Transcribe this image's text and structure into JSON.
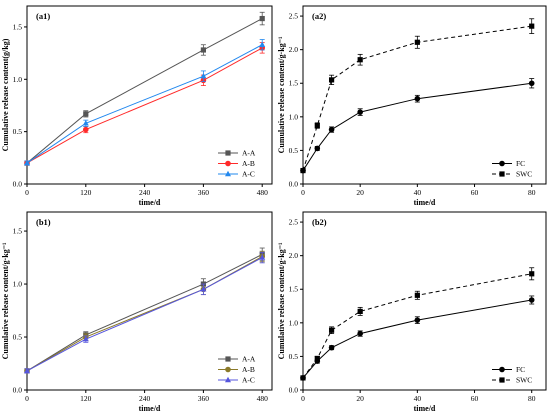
{
  "chart_data": [
    {
      "panel": "(a1)",
      "type": "line",
      "xlabel": "time/d",
      "ylabel": "Cumulative release content(g/kg)",
      "x": [
        0,
        120,
        360,
        480
      ],
      "xlim": [
        0,
        500
      ],
      "ylim": [
        0,
        1.7
      ],
      "xticks": [
        0,
        120,
        240,
        360,
        480
      ],
      "yticks": [
        0.0,
        0.5,
        1.0,
        1.5
      ],
      "legend_position": "bottom-right",
      "series": [
        {
          "name": "A-A",
          "values": [
            0.2,
            0.67,
            1.28,
            1.58
          ],
          "errors": [
            0.02,
            0.03,
            0.05,
            0.06
          ],
          "color": "#555555",
          "marker": "square"
        },
        {
          "name": "A-B",
          "values": [
            0.2,
            0.52,
            0.99,
            1.3
          ],
          "errors": [
            0.02,
            0.03,
            0.05,
            0.05
          ],
          "color": "#ff2a2a",
          "marker": "circle"
        },
        {
          "name": "A-C",
          "values": [
            0.2,
            0.58,
            1.03,
            1.33
          ],
          "errors": [
            0.02,
            0.03,
            0.05,
            0.05
          ],
          "color": "#2288ee",
          "marker": "triangle"
        }
      ]
    },
    {
      "panel": "(a2)",
      "type": "line",
      "xlabel": "time/d",
      "ylabel": "Cumulative release content/g·kg⁻¹",
      "x": [
        0,
        5,
        10,
        20,
        40,
        80
      ],
      "xlim": [
        0,
        85
      ],
      "ylim": [
        0,
        2.65
      ],
      "xticks": [
        0,
        20,
        40,
        60,
        80
      ],
      "yticks": [
        0.0,
        0.5,
        1.0,
        1.5,
        2.0,
        2.5
      ],
      "legend_position": "bottom-right",
      "series": [
        {
          "name": "FC",
          "values": [
            0.2,
            0.53,
            0.81,
            1.07,
            1.27,
            1.5
          ],
          "errors": [
            0.02,
            0.03,
            0.04,
            0.05,
            0.05,
            0.07
          ],
          "color": "#000000",
          "marker": "circle",
          "dash": "solid"
        },
        {
          "name": "SWC",
          "values": [
            0.2,
            0.87,
            1.55,
            1.85,
            2.11,
            2.35
          ],
          "errors": [
            0.02,
            0.04,
            0.07,
            0.08,
            0.09,
            0.11
          ],
          "color": "#000000",
          "marker": "square",
          "dash": "dashed"
        }
      ]
    },
    {
      "panel": "(b1)",
      "type": "line",
      "xlabel": "time/d",
      "ylabel": "Cumulative release content/g·kg⁻¹",
      "x": [
        0,
        120,
        360,
        480
      ],
      "xlim": [
        0,
        500
      ],
      "ylim": [
        0,
        1.68
      ],
      "xticks": [
        0,
        120,
        240,
        360,
        480
      ],
      "yticks": [
        0.0,
        0.5,
        1.0,
        1.5
      ],
      "legend_position": "bottom-right",
      "series": [
        {
          "name": "A-A",
          "values": [
            0.18,
            0.52,
            1.0,
            1.28
          ],
          "errors": [
            0.02,
            0.03,
            0.05,
            0.06
          ],
          "color": "#555555",
          "marker": "square"
        },
        {
          "name": "A-B",
          "values": [
            0.18,
            0.5,
            0.95,
            1.26
          ],
          "errors": [
            0.02,
            0.03,
            0.05,
            0.05
          ],
          "color": "#8b7a2a",
          "marker": "circle"
        },
        {
          "name": "A-C",
          "values": [
            0.18,
            0.48,
            0.95,
            1.25
          ],
          "errors": [
            0.02,
            0.03,
            0.05,
            0.05
          ],
          "color": "#5555dd",
          "marker": "triangle"
        }
      ]
    },
    {
      "panel": "(b2)",
      "type": "line",
      "xlabel": "time/d",
      "ylabel": "Cumulative release content/g·kg⁻¹",
      "x": [
        0,
        5,
        10,
        20,
        40,
        80
      ],
      "xlim": [
        0,
        85
      ],
      "ylim": [
        0,
        2.65
      ],
      "xticks": [
        0,
        20,
        40,
        60,
        80
      ],
      "yticks": [
        0.0,
        0.5,
        1.0,
        1.5,
        2.0,
        2.5
      ],
      "legend_position": "bottom-right",
      "series": [
        {
          "name": "FC",
          "values": [
            0.18,
            0.43,
            0.63,
            0.84,
            1.04,
            1.34
          ],
          "errors": [
            0.02,
            0.03,
            0.03,
            0.04,
            0.05,
            0.06
          ],
          "color": "#000000",
          "marker": "circle",
          "dash": "solid"
        },
        {
          "name": "SWC",
          "values": [
            0.18,
            0.47,
            0.89,
            1.17,
            1.41,
            1.73
          ],
          "errors": [
            0.02,
            0.03,
            0.05,
            0.06,
            0.06,
            0.09
          ],
          "color": "#000000",
          "marker": "square",
          "dash": "dashed"
        }
      ]
    }
  ]
}
